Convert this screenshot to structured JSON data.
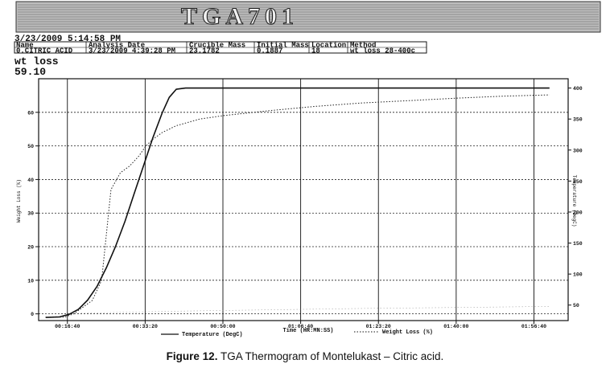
{
  "header": {
    "title": "TGA701",
    "datetime": "3/23/2009 5:14:58 PM",
    "columns": [
      "Name",
      "Analysis Date",
      "Crucible Mass",
      "Initial Mass",
      "Location",
      "Method"
    ],
    "row": [
      "0.CITRIC ACID",
      "3/23/2009 4:39:28 PM",
      "23.1782",
      "0.1887",
      "18",
      "wt loss 28-400c"
    ],
    "result_label": "wt loss",
    "result_value": "59.10"
  },
  "chart_data": {
    "type": "line",
    "x_ticks": [
      "00:16:40",
      "00:33:20",
      "00:50:00",
      "01:06:40",
      "01:23:20",
      "01:40:00",
      "01:56:40"
    ],
    "x_tick_minutes": [
      16.667,
      33.333,
      50.0,
      66.667,
      83.333,
      100.0,
      116.667
    ],
    "xlim_minutes": [
      10.5,
      124
    ],
    "xlabel": "Time (HR:MN:SS)",
    "ylabel_left": "Weight Loss (%)",
    "ylim_left": [
      -2,
      70
    ],
    "y_ticks_left": [
      0,
      10,
      20,
      30,
      40,
      50,
      60
    ],
    "ylabel_right": "Temperature (DegC)",
    "ylim_right": [
      25,
      415
    ],
    "y_ticks_right": [
      50,
      100,
      150,
      200,
      250,
      300,
      350,
      400
    ],
    "series": [
      {
        "name": "Temperature (DegC)",
        "axis": "right",
        "style": "solid",
        "x": [
          12,
          15,
          17,
          19,
          21,
          23,
          25,
          27,
          29,
          31,
          33,
          35,
          37,
          38.5,
          40,
          42,
          50,
          60,
          70,
          80,
          90,
          100,
          110,
          120
        ],
        "y": [
          30,
          31,
          35,
          43,
          58,
          80,
          110,
          145,
          185,
          230,
          275,
          320,
          360,
          385,
          398,
          400,
          400,
          400,
          400,
          400,
          400,
          400,
          400,
          400
        ]
      },
      {
        "name": "Weight Loss (%)",
        "axis": "left",
        "style": "dotted",
        "x": [
          12,
          16,
          18,
          20,
          22,
          24,
          26,
          28,
          30,
          32,
          33.5,
          35,
          37,
          40,
          45,
          50,
          60,
          70,
          80,
          90,
          100,
          110,
          120
        ],
        "y": [
          -1,
          -1,
          0,
          2,
          4,
          10,
          37,
          42,
          44,
          47,
          50,
          52,
          54,
          56,
          58,
          59,
          60.5,
          61.8,
          62.8,
          63.5,
          64.2,
          64.8,
          65.2
        ]
      },
      {
        "name": "",
        "axis": "left",
        "style": "faint",
        "x": [
          12,
          20,
          30,
          40,
          60,
          80,
          100,
          120
        ],
        "y": [
          0,
          0.2,
          0.5,
          0.8,
          1.2,
          1.6,
          1.9,
          2.2
        ]
      }
    ],
    "legend": [
      "Temperature (DegC)",
      "Weight Loss (%)"
    ]
  },
  "caption": {
    "label": "Figure 12.",
    "text": " TGA Thermogram of Montelukast – Citric acid."
  }
}
